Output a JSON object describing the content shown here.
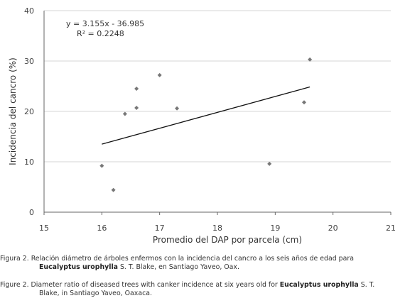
{
  "chart_data": {
    "type": "scatter",
    "xlabel": "Promedio del DAP por parcela (cm)",
    "ylabel": "Incidencia del cancro (%)",
    "xlim": [
      15,
      21
    ],
    "ylim": [
      0,
      40
    ],
    "x_ticks": [
      "15",
      "16",
      "17",
      "18",
      "19",
      "20",
      "21"
    ],
    "y_ticks": [
      "0",
      "10",
      "20",
      "30",
      "40"
    ],
    "grid": true,
    "points": [
      {
        "x": 16.0,
        "y": 9.2
      },
      {
        "x": 16.2,
        "y": 4.4
      },
      {
        "x": 16.4,
        "y": 19.5
      },
      {
        "x": 16.6,
        "y": 24.5
      },
      {
        "x": 16.6,
        "y": 20.7
      },
      {
        "x": 17.0,
        "y": 27.2
      },
      {
        "x": 17.3,
        "y": 20.6
      },
      {
        "x": 18.9,
        "y": 9.6
      },
      {
        "x": 19.5,
        "y": 21.8
      },
      {
        "x": 19.6,
        "y": 30.3
      }
    ],
    "trendline": {
      "slope": 3.155,
      "intercept": -36.985,
      "x_range": [
        16.0,
        19.6
      ]
    },
    "equation": "y = 3.155x - 36.985",
    "r_squared": "R² = 0.2248"
  },
  "caption": {
    "es_prefix": "Figura 2. Relación diámetro de árboles enfermos con la incidencia del cancro a los seis años de edad para",
    "es_species": "Eucalyptus urophylla",
    "es_suffix": " S. T. Blake, en Santiago Yaveo, Oax.",
    "en_prefix": "Figure 2. Diameter ratio of diseased trees with canker incidence at six years old for ",
    "en_species": "Eucalyptus urophylla",
    "en_suffix_1": " S. T.",
    "en_suffix_2": "Blake, in Santiago Yaveo, Oaxaca."
  }
}
